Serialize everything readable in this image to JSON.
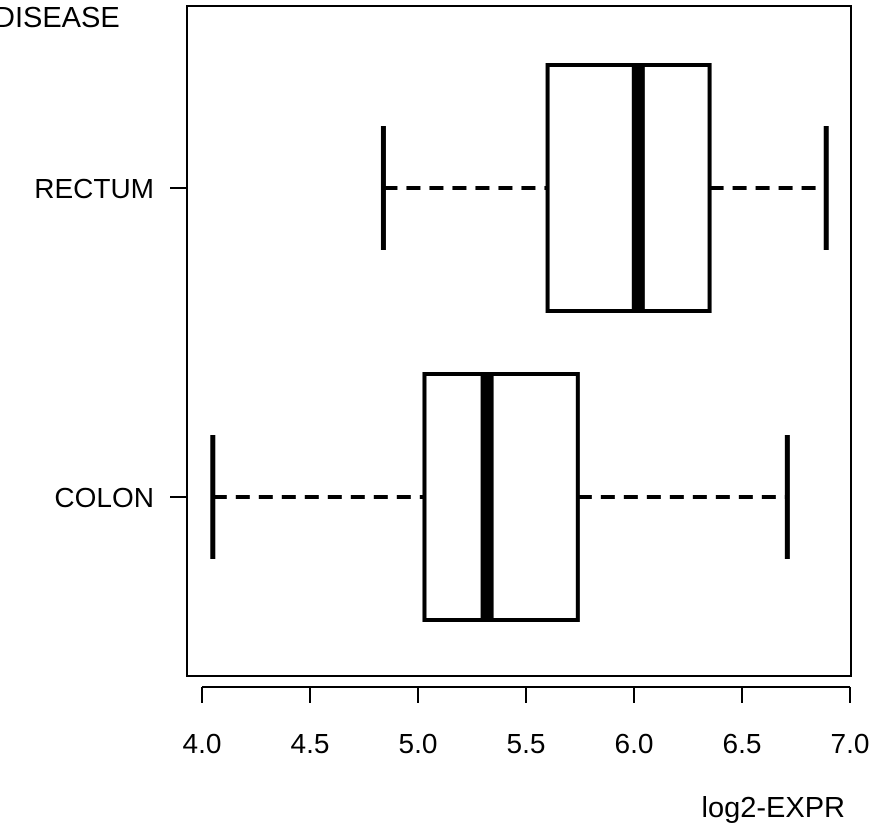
{
  "chart_data": {
    "type": "boxplot",
    "orientation": "horizontal",
    "title": "DISEASE",
    "xlabel": "log2-EXPR",
    "ylabel": "",
    "xlim": [
      3.96,
      7.0
    ],
    "xticks": [
      4.0,
      4.5,
      5.0,
      5.5,
      6.0,
      6.5,
      7.0
    ],
    "xtick_labels": [
      "4.0",
      "4.5",
      "5.0",
      "5.5",
      "6.0",
      "6.5",
      "7.0"
    ],
    "categories": [
      "COLON",
      "RECTUM"
    ],
    "boxes": [
      {
        "category": "COLON",
        "whisker_low": 4.05,
        "q1": 5.03,
        "median": 5.32,
        "q3": 5.74,
        "whisker_high": 6.71
      },
      {
        "category": "RECTUM",
        "whisker_low": 4.84,
        "q1": 5.6,
        "median": 6.02,
        "q3": 6.35,
        "whisker_high": 6.89
      }
    ],
    "grid": false,
    "legend": "none"
  }
}
